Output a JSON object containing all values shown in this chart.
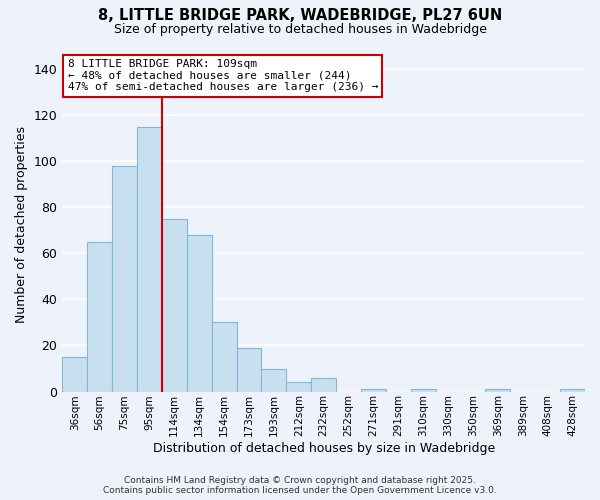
{
  "title": "8, LITTLE BRIDGE PARK, WADEBRIDGE, PL27 6UN",
  "subtitle": "Size of property relative to detached houses in Wadebridge",
  "xlabel": "Distribution of detached houses by size in Wadebridge",
  "ylabel": "Number of detached properties",
  "bar_color": "#c8dff0",
  "bar_edge_color": "#7fb8d8",
  "background_color": "#eef2fa",
  "grid_color": "#ffffff",
  "categories": [
    "36sqm",
    "56sqm",
    "75sqm",
    "95sqm",
    "114sqm",
    "134sqm",
    "154sqm",
    "173sqm",
    "193sqm",
    "212sqm",
    "232sqm",
    "252sqm",
    "271sqm",
    "291sqm",
    "310sqm",
    "330sqm",
    "350sqm",
    "369sqm",
    "389sqm",
    "408sqm",
    "428sqm"
  ],
  "values": [
    15,
    65,
    98,
    115,
    75,
    68,
    30,
    19,
    10,
    4,
    6,
    0,
    1,
    0,
    1,
    0,
    0,
    1,
    0,
    0,
    1
  ],
  "ylim": [
    0,
    145
  ],
  "yticks": [
    0,
    20,
    40,
    60,
    80,
    100,
    120,
    140
  ],
  "vline_color": "#cc0000",
  "vline_x_index": 4,
  "annotation_title": "8 LITTLE BRIDGE PARK: 109sqm",
  "annotation_line2": "← 48% of detached houses are smaller (244)",
  "annotation_line3": "47% of semi-detached houses are larger (236) →",
  "annotation_box_color": "#cc0000",
  "footnote1": "Contains HM Land Registry data © Crown copyright and database right 2025.",
  "footnote2": "Contains public sector information licensed under the Open Government Licence v3.0."
}
